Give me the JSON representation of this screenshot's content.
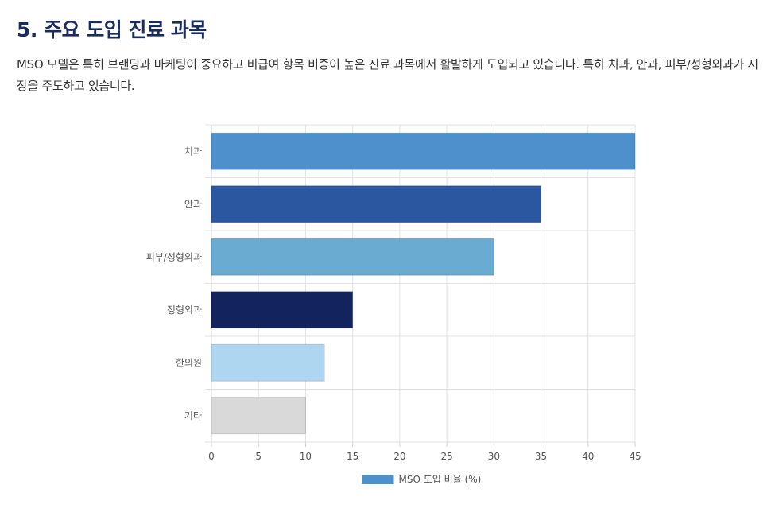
{
  "section": {
    "title": "5. 주요 도입 진료 과목",
    "description": "MSO 모델은 특히 브랜딩과 마케팅이 중요하고 비급여 항목 비중이 높은 진료 과목에서 활발하게 도입되고 있습니다. 특히 치과, 안과, 피부/성형외과가 시장을 주도하고 있습니다."
  },
  "chart_data": {
    "type": "bar",
    "orientation": "horizontal",
    "categories": [
      "치과",
      "안과",
      "피부/성형외과",
      "정형외과",
      "한의원",
      "기타"
    ],
    "series": [
      {
        "name": "MSO 도입 비율 (%)",
        "values": [
          45,
          35,
          30,
          15,
          12,
          10
        ],
        "colors": [
          "#4e90cc",
          "#2b56a0",
          "#6aabd2",
          "#13235e",
          "#aed6f0",
          "#d9d9d9"
        ]
      }
    ],
    "xlim": [
      0,
      45
    ],
    "xticks": [
      0,
      5,
      10,
      15,
      20,
      25,
      30,
      35,
      40,
      45
    ],
    "grid": true,
    "legend_position": "bottom",
    "legend_color": "#4e90cc"
  }
}
